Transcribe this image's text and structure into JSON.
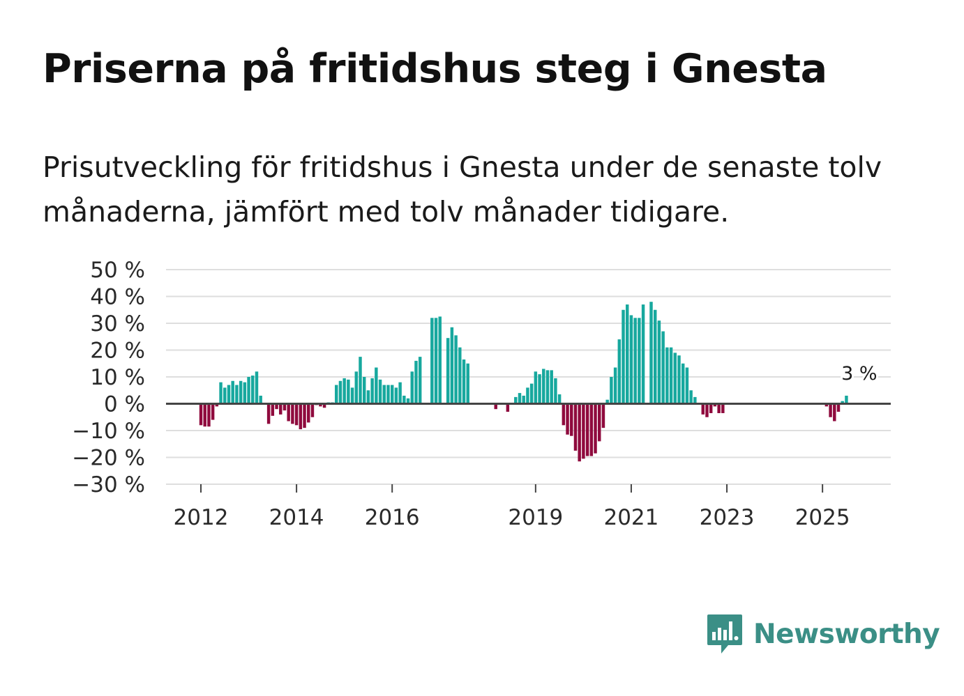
{
  "header": {
    "title": "Priserna på fritidshus steg i Gnesta",
    "subtitle": "Prisutveckling för fritidshus i Gnesta under de senaste tolv månaderna, jämfört med tolv månader tidigare."
  },
  "brand": {
    "name": "Newsworthy",
    "color": "#3b8f86"
  },
  "chart_data": {
    "type": "bar",
    "title": "Prisutveckling för fritidshus i Gnesta",
    "xlabel": "",
    "ylabel": "",
    "ylim": [
      -30,
      50
    ],
    "yticks": [
      50,
      40,
      30,
      20,
      10,
      0,
      -10,
      -20,
      -30
    ],
    "ytick_labels": [
      "50 %",
      "40 %",
      "30 %",
      "20 %",
      "10 %",
      "0 %",
      "−10 %",
      "−20 %",
      "−30 %"
    ],
    "xtick_labels": [
      "2012",
      "2014",
      "2016",
      "2019",
      "2021",
      "2023",
      "2025"
    ],
    "xtick_years": [
      2012,
      2014,
      2016,
      2019,
      2021,
      2023,
      2025
    ],
    "start_year": 2012,
    "start_month": 1,
    "end_year": 2026,
    "end_month": 12,
    "positive_color": "#17a89e",
    "negative_color": "#8f0a3d",
    "annotation": {
      "label": "3 %",
      "year": 2025,
      "month": 10,
      "value": 3
    },
    "values": [
      -8,
      -8.5,
      -8.5,
      -6,
      -1,
      8,
      6,
      7,
      8.5,
      7,
      8.5,
      8,
      10,
      10.5,
      12,
      3,
      null,
      -7.5,
      -4.5,
      -2,
      -4,
      -2.5,
      -6.5,
      -7.5,
      -8,
      -9.5,
      -9,
      -7,
      -5,
      -0.5,
      -1,
      -1.5,
      0.5,
      0.5,
      7,
      8.5,
      9.5,
      9,
      6,
      12,
      17.5,
      10,
      5,
      9.5,
      13.5,
      9,
      7,
      7,
      7,
      6,
      8,
      3,
      2,
      12,
      16,
      17.5,
      null,
      null,
      32,
      32,
      32.5,
      null,
      24.5,
      28.5,
      25.5,
      21,
      16.5,
      15,
      null,
      null,
      null,
      null,
      null,
      null,
      -2,
      null,
      null,
      -3,
      null,
      2.5,
      4,
      3,
      6,
      7.5,
      12,
      11,
      13,
      12.5,
      12.5,
      9.5,
      3.5,
      -8,
      -11.5,
      -12,
      -17.5,
      -21.5,
      -20.5,
      -19.5,
      -19.5,
      -18.5,
      -14,
      -9,
      1.5,
      10,
      13.5,
      24,
      35,
      37,
      33,
      32,
      32,
      37,
      null,
      38,
      35,
      31,
      27,
      21,
      21,
      19,
      18,
      15,
      13.5,
      5,
      2.5,
      null,
      -4,
      -5,
      -3.5,
      -1,
      -3.5,
      -3.5,
      null,
      null,
      null,
      null,
      null,
      null,
      null,
      null,
      null,
      null,
      null,
      null,
      null,
      null,
      null,
      null,
      null,
      null,
      null,
      null,
      null,
      null,
      null,
      null,
      null,
      -1,
      -5,
      -6.5,
      -3,
      1,
      3,
      null,
      null,
      null,
      null,
      null,
      null,
      null,
      null,
      null,
      null,
      null,
      null,
      null,
      null,
      null,
      null,
      null
    ]
  }
}
